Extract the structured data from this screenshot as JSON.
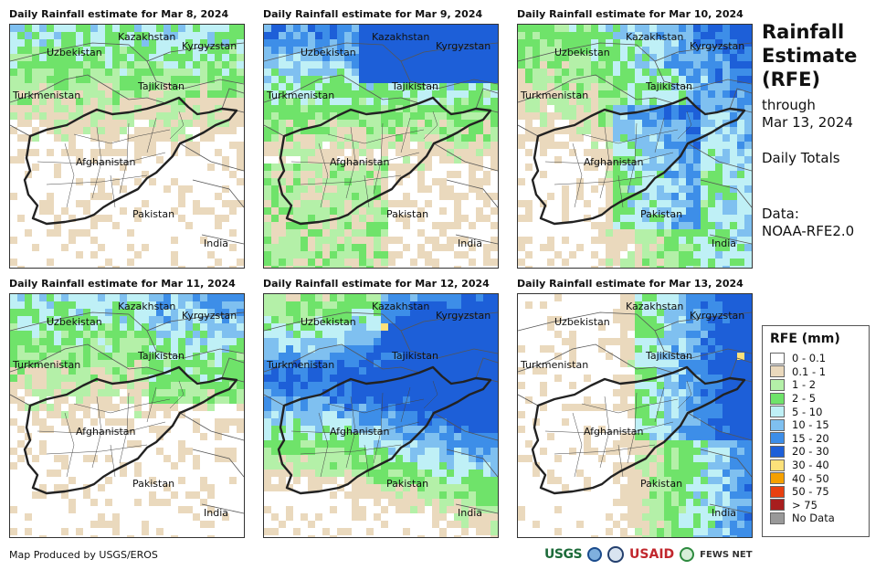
{
  "title": {
    "line1": "Rainfall",
    "line2": "Estimate",
    "line3": "(RFE)",
    "through": "through",
    "date": "Mar 13, 2024",
    "totals": "Daily Totals",
    "data_label": "Data:",
    "data_source": "NOAA-RFE2.0"
  },
  "panels": [
    {
      "title": "Daily Rainfall estimate for Mar 8, 2024",
      "intensity": 0
    },
    {
      "title": "Daily Rainfall estimate for Mar 9, 2024",
      "intensity": 1
    },
    {
      "title": "Daily Rainfall estimate for Mar 10, 2024",
      "intensity": 2
    },
    {
      "title": "Daily Rainfall estimate for Mar 11, 2024",
      "intensity": 3
    },
    {
      "title": "Daily Rainfall estimate for Mar 12, 2024",
      "intensity": 4
    },
    {
      "title": "Daily Rainfall estimate for Mar 13, 2024",
      "intensity": 5
    }
  ],
  "labels": {
    "kazakhstan": "Kazakhstan",
    "kyrgyzstan": "Kyrgyzstan",
    "uzbekistan": "Uzbekistan",
    "tajikistan": "Tajikistan",
    "turkmenistan": "Turkmenistan",
    "afghanistan": "Afghanistan",
    "pakistan": "Pakistan",
    "india": "India"
  },
  "legend": {
    "title": "RFE (mm)",
    "items": [
      {
        "label": "0 - 0.1",
        "color": "#ffffff"
      },
      {
        "label": "0.1 - 1",
        "color": "#ead9bd"
      },
      {
        "label": "1 - 2",
        "color": "#b4f0a8"
      },
      {
        "label": "2 - 5",
        "color": "#6fe36a"
      },
      {
        "label": "5 - 10",
        "color": "#bff0f6"
      },
      {
        "label": "10 - 15",
        "color": "#7fc0f0"
      },
      {
        "label": "15 - 20",
        "color": "#3d8ee8"
      },
      {
        "label": "20 - 30",
        "color": "#1d5fd8"
      },
      {
        "label": "30 - 40",
        "color": "#fce17a"
      },
      {
        "label": "40 - 50",
        "color": "#f5a000"
      },
      {
        "label": "50 - 75",
        "color": "#e84010"
      },
      {
        "label": "> 75",
        "color": "#a81e1e"
      },
      {
        "label": "No Data",
        "color": "#999999"
      }
    ]
  },
  "credit": "Map Produced by USGS/EROS",
  "logos": {
    "usgs": "USGS",
    "usaid": "USAID",
    "fews": "FEWS NET"
  }
}
